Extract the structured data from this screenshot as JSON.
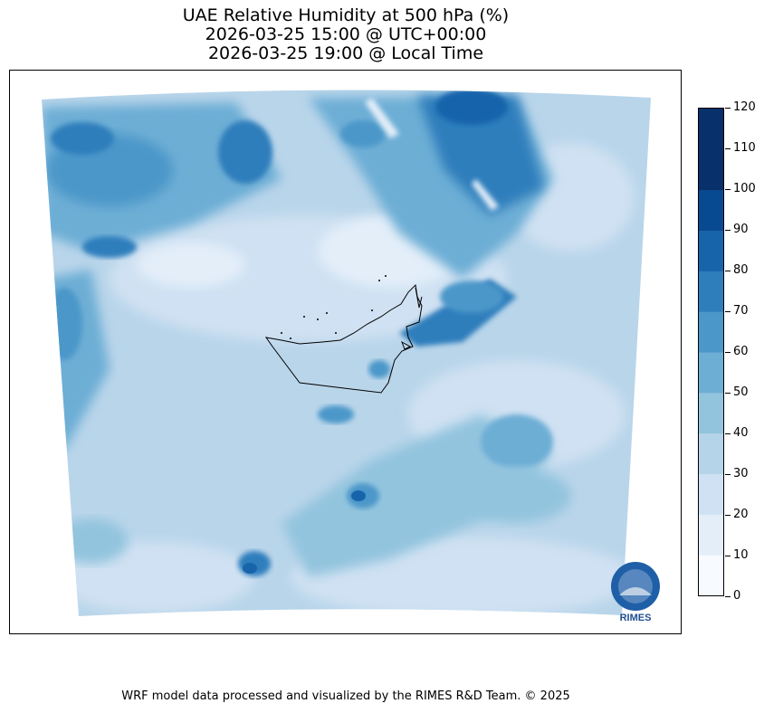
{
  "title": {
    "line1": "UAE Relative Humidity at 500 hPa (%)",
    "line2": "2026-03-25 15:00 @ UTC+00:00",
    "line3": "2026-03-25 19:00 @ Local Time"
  },
  "colorbar": {
    "ticks": [
      "0",
      "10",
      "20",
      "30",
      "40",
      "50",
      "60",
      "70",
      "80",
      "90",
      "100",
      "110",
      "120"
    ],
    "colors": [
      "#f7fbff",
      "#e3eef9",
      "#cfe1f2",
      "#b5d4e9",
      "#93c4de",
      "#6daed5",
      "#4b97c9",
      "#2f7ebc",
      "#1764ab",
      "#084a91",
      "#08306b",
      "#08306b"
    ]
  },
  "logo": {
    "text": "RIMES"
  },
  "footer": {
    "text": "WRF model data processed and visualized by the RIMES R&D Team. © 2025"
  }
}
